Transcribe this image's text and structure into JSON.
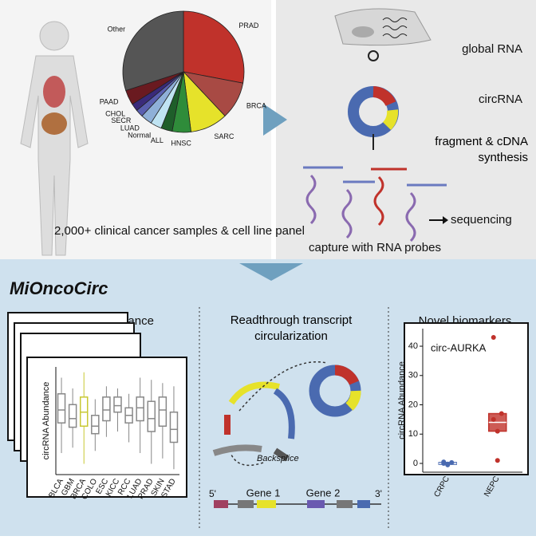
{
  "overview": {
    "pie": {
      "type": "pie",
      "labels": [
        "PRAD",
        "BRCA",
        "SARC",
        "HNSC",
        "ALL",
        "Normal",
        "LUAD",
        "SECR",
        "CHOL",
        "PAAD",
        "Other"
      ],
      "values": [
        28,
        10,
        10,
        5,
        3,
        3,
        3,
        2,
        2,
        4,
        30
      ],
      "colors": [
        "#c0322b",
        "#a84a44",
        "#e6e22a",
        "#2f8c3a",
        "#1e5e2a",
        "#bfe3f2",
        "#8fb0d8",
        "#5a5fb0",
        "#3a2a7a",
        "#6a1a20",
        "#555555"
      ]
    },
    "caption": "2,000+ clinical cancer samples & cell line panel"
  },
  "workflow": {
    "global_rna": "global RNA",
    "circrna": "circRNA",
    "fragment": "fragment & cDNA synthesis",
    "sequencing": "sequencing",
    "capture": "capture with RNA probes"
  },
  "resource": {
    "title": "MiOncoCirc"
  },
  "isoforms": {
    "heading": "Isoforms abundance",
    "boxplot": {
      "type": "box",
      "ylabel": "circRNA Abundance",
      "ylim": [
        0,
        100
      ],
      "categories": [
        "BLCA",
        "GBM",
        "BRCA",
        "COLO",
        "ESC",
        "KICC",
        "RCC",
        "LUAD",
        "PRAD",
        "SKIN",
        "STAD"
      ],
      "colors": [
        "#888888",
        "#888888",
        "#c8c832",
        "#888888",
        "#888888",
        "#888888",
        "#888888",
        "#888888",
        "#888888",
        "#888888",
        "#888888"
      ],
      "boxes": [
        {
          "low": 20,
          "q1": 48,
          "median": 60,
          "q3": 75,
          "high": 90
        },
        {
          "low": 25,
          "q1": 44,
          "median": 52,
          "q3": 65,
          "high": 80
        },
        {
          "low": 10,
          "q1": 45,
          "median": 58,
          "q3": 72,
          "high": 95
        },
        {
          "low": 22,
          "q1": 38,
          "median": 45,
          "q3": 55,
          "high": 70
        },
        {
          "low": 35,
          "q1": 50,
          "median": 60,
          "q3": 72,
          "high": 82
        },
        {
          "low": 40,
          "q1": 58,
          "median": 64,
          "q3": 72,
          "high": 80
        },
        {
          "low": 30,
          "q1": 48,
          "median": 55,
          "q3": 62,
          "high": 75
        },
        {
          "low": 20,
          "q1": 50,
          "median": 62,
          "q3": 72,
          "high": 90
        },
        {
          "low": 10,
          "q1": 40,
          "median": 52,
          "q3": 68,
          "high": 88
        },
        {
          "low": 15,
          "q1": 45,
          "median": 60,
          "q3": 72,
          "high": 85
        },
        {
          "low": 5,
          "q1": 30,
          "median": 42,
          "q3": 58,
          "high": 82
        }
      ]
    }
  },
  "readthrough": {
    "heading": "Readthrough transcript circularization",
    "backsplice": "Backsplice",
    "five_prime": "5'",
    "three_prime": "3'",
    "gene1": "Gene 1",
    "gene2": "Gene 2"
  },
  "biomarkers": {
    "heading": "Novel biomarkers",
    "scatter": {
      "type": "box",
      "title": "circ-AURKA",
      "ylabel": "circRNA Abundance",
      "ylim": [
        -3,
        46
      ],
      "yticks": [
        0,
        10,
        20,
        30,
        40
      ],
      "categories": [
        "CRPC",
        "NEPC"
      ],
      "colors": [
        "#4a6ab0",
        "#c0322b"
      ],
      "boxes": [
        {
          "low": -0.5,
          "q1": -0.3,
          "median": 0,
          "q3": 0.3,
          "high": 0.5
        },
        {
          "low": 11,
          "q1": 11,
          "median": 14,
          "q3": 17,
          "high": 17
        }
      ],
      "points": [
        [
          0,
          -0.5,
          0.3,
          0.5,
          -0.2
        ],
        [
          43,
          1,
          17,
          15,
          11
        ]
      ]
    }
  }
}
